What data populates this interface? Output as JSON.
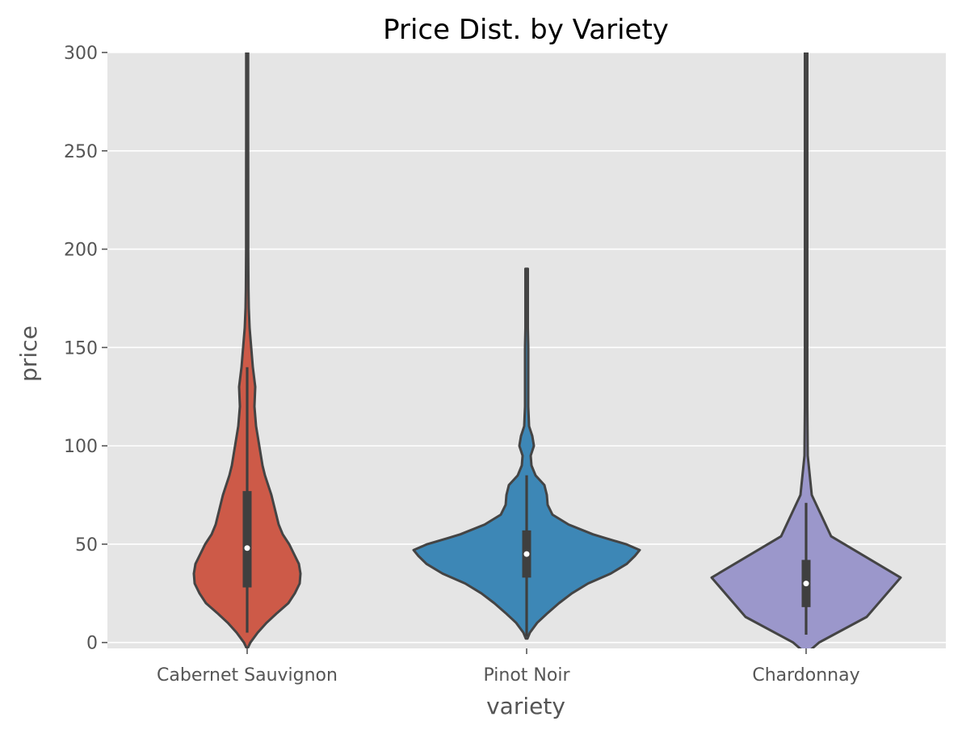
{
  "chart_data": {
    "type": "violin",
    "title": "Price Dist. by Variety",
    "xlabel": "variety",
    "ylabel": "price",
    "ylim": [
      -3,
      300
    ],
    "yticks": [
      0,
      50,
      100,
      150,
      200,
      250,
      300
    ],
    "grid": true,
    "categories": [
      "Cabernet Sauvignon",
      "Pinot Noir",
      "Chardonnay"
    ],
    "violins": [
      {
        "category": "Cabernet Sauvignon",
        "color": "#cd5a48",
        "density": [
          [
            -3,
            0.5
          ],
          [
            0,
            4
          ],
          [
            5,
            13
          ],
          [
            10,
            24
          ],
          [
            15,
            37
          ],
          [
            20,
            51
          ],
          [
            25,
            59
          ],
          [
            30,
            65
          ],
          [
            35,
            66
          ],
          [
            40,
            64
          ],
          [
            45,
            58
          ],
          [
            50,
            52
          ],
          [
            55,
            44
          ],
          [
            60,
            39
          ],
          [
            65,
            36
          ],
          [
            70,
            33
          ],
          [
            75,
            30
          ],
          [
            80,
            26
          ],
          [
            85,
            22
          ],
          [
            90,
            19
          ],
          [
            100,
            15
          ],
          [
            110,
            11
          ],
          [
            115,
            10
          ],
          [
            120,
            9
          ],
          [
            130,
            10
          ],
          [
            140,
            7
          ],
          [
            145,
            6
          ],
          [
            150,
            5
          ],
          [
            160,
            3
          ],
          [
            170,
            2
          ],
          [
            180,
            1.6
          ],
          [
            200,
            1.3
          ],
          [
            230,
            1.3
          ],
          [
            260,
            1.2
          ],
          [
            300,
            1.2
          ]
        ],
        "box": {
          "q1": 28,
          "median": 48,
          "q3": 77,
          "whisker_low": 5,
          "whisker_high": 140
        }
      },
      {
        "category": "Pinot Noir",
        "color": "#3d87b6",
        "density": [
          [
            2,
            1
          ],
          [
            5,
            4
          ],
          [
            10,
            13
          ],
          [
            15,
            26
          ],
          [
            20,
            40
          ],
          [
            25,
            56
          ],
          [
            30,
            76
          ],
          [
            35,
            104
          ],
          [
            40,
            124
          ],
          [
            44,
            134
          ],
          [
            47,
            140
          ],
          [
            50,
            123
          ],
          [
            53,
            98
          ],
          [
            55,
            82
          ],
          [
            60,
            52
          ],
          [
            65,
            32
          ],
          [
            70,
            26
          ],
          [
            75,
            25
          ],
          [
            80,
            22
          ],
          [
            85,
            11
          ],
          [
            90,
            6
          ],
          [
            95,
            5
          ],
          [
            100,
            9
          ],
          [
            105,
            7
          ],
          [
            110,
            3
          ],
          [
            120,
            2
          ],
          [
            130,
            2
          ],
          [
            140,
            2
          ],
          [
            150,
            2
          ],
          [
            160,
            1.5
          ],
          [
            175,
            1.5
          ],
          [
            190,
            1.5
          ]
        ],
        "box": {
          "q1": 33,
          "median": 45,
          "q3": 57,
          "whisker_low": 3,
          "whisker_high": 85
        }
      },
      {
        "category": "Chardonnay",
        "color": "#9b97cb",
        "density": [
          [
            -5,
            2
          ],
          [
            0,
            16
          ],
          [
            13,
            75
          ],
          [
            33,
            117
          ],
          [
            54,
            31
          ],
          [
            75,
            7
          ],
          [
            95,
            2
          ],
          [
            120,
            1.5
          ],
          [
            200,
            1.5
          ],
          [
            300,
            1.5
          ]
        ],
        "box": {
          "q1": 18,
          "median": 30,
          "q3": 42,
          "whisker_low": 4,
          "whisker_high": 71
        }
      }
    ]
  },
  "colors": {
    "plot_background": "#e5e5e5",
    "grid": "#ffffff",
    "outline": "#444444",
    "box": "#3f3f3f",
    "median": "#ffffff"
  }
}
